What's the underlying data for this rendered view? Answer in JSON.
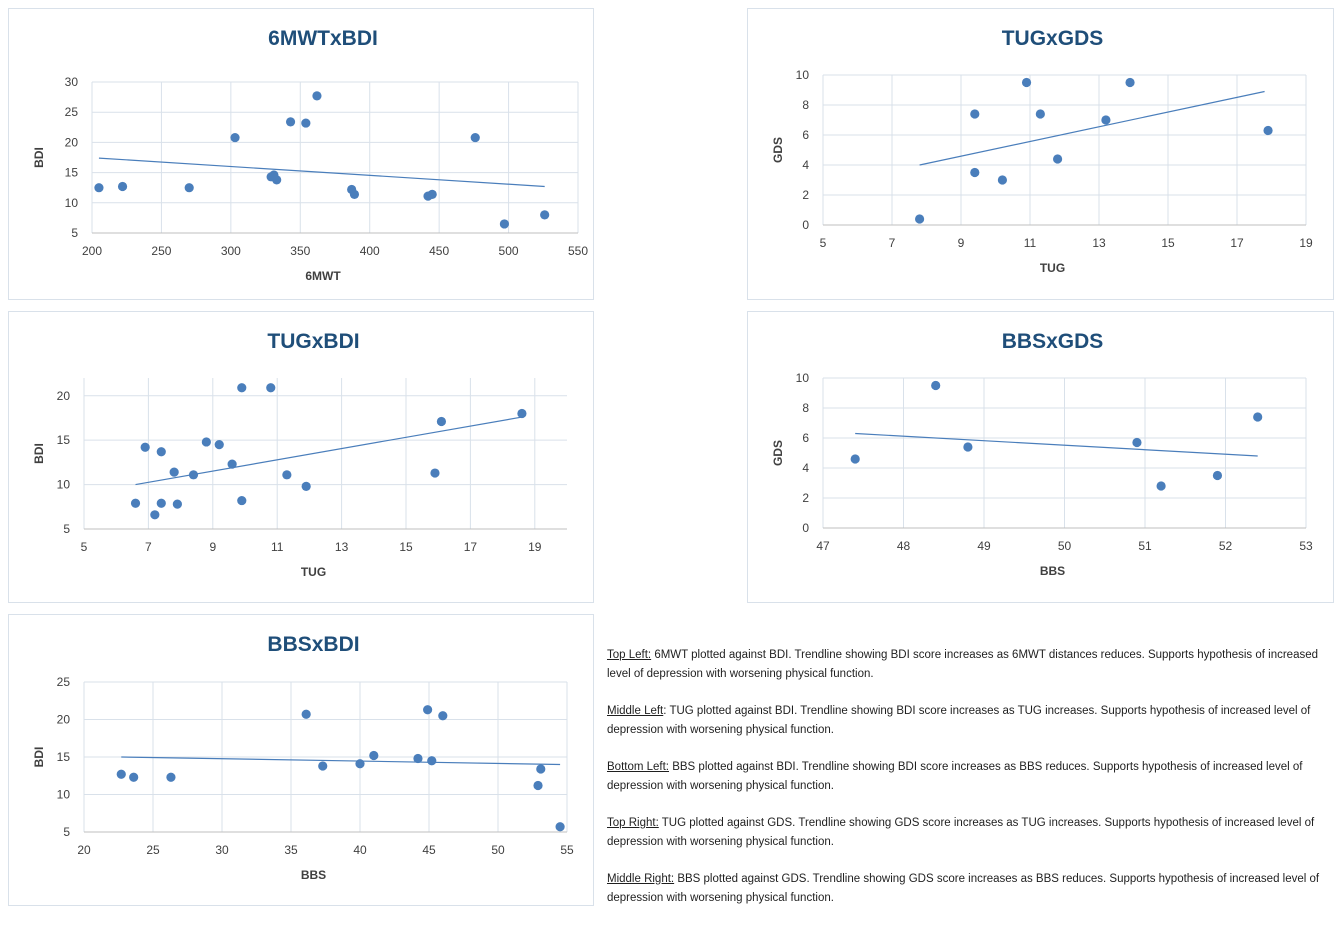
{
  "chart_data": [
    {
      "type": "scatter",
      "title": "6MWTxBDI",
      "xlabel": "6MWT",
      "ylabel": "BDI",
      "xlim": [
        200,
        550
      ],
      "ylim": [
        5,
        30
      ],
      "xticks": [
        200,
        250,
        300,
        350,
        400,
        450,
        500,
        550
      ],
      "yticks": [
        5,
        10,
        15,
        20,
        25,
        30
      ],
      "points": [
        [
          205,
          12.5
        ],
        [
          222,
          12.7
        ],
        [
          270,
          12.5
        ],
        [
          303,
          20.8
        ],
        [
          329,
          14.3
        ],
        [
          331,
          14.6
        ],
        [
          333,
          13.8
        ],
        [
          343,
          23.4
        ],
        [
          354,
          23.2
        ],
        [
          362,
          27.7
        ],
        [
          387,
          12.2
        ],
        [
          389,
          11.4
        ],
        [
          442,
          11.1
        ],
        [
          445,
          11.4
        ],
        [
          476,
          20.8
        ],
        [
          497,
          6.5
        ],
        [
          526,
          8.0
        ]
      ],
      "trendline": [
        [
          205,
          17.4
        ],
        [
          526,
          12.7
        ]
      ],
      "grid": true
    },
    {
      "type": "scatter",
      "title": "TUGxGDS",
      "xlabel": "TUG",
      "ylabel": "GDS",
      "xlim": [
        5,
        19
      ],
      "ylim": [
        0,
        10
      ],
      "xticks": [
        5,
        7,
        9,
        11,
        13,
        15,
        17,
        19
      ],
      "yticks": [
        0,
        2,
        4,
        6,
        8,
        10
      ],
      "points": [
        [
          7.8,
          0.4
        ],
        [
          9.4,
          3.5
        ],
        [
          9.4,
          7.4
        ],
        [
          10.2,
          3.0
        ],
        [
          10.9,
          9.5
        ],
        [
          11.3,
          7.4
        ],
        [
          11.8,
          4.4
        ],
        [
          13.2,
          7.0
        ],
        [
          13.9,
          9.5
        ],
        [
          17.9,
          6.3
        ]
      ],
      "trendline": [
        [
          7.8,
          4.0
        ],
        [
          17.8,
          8.9
        ]
      ],
      "grid": true
    },
    {
      "type": "scatter",
      "title": "TUGxBDI",
      "xlabel": "TUG",
      "ylabel": "BDI",
      "xlim": [
        5,
        20
      ],
      "ylim": [
        5,
        22
      ],
      "xticks": [
        5,
        7,
        9,
        11,
        13,
        15,
        17,
        19
      ],
      "yticks": [
        5,
        10,
        15,
        20
      ],
      "points": [
        [
          6.6,
          7.9
        ],
        [
          6.9,
          14.2
        ],
        [
          7.2,
          6.6
        ],
        [
          7.4,
          7.9
        ],
        [
          7.4,
          13.7
        ],
        [
          7.8,
          11.4
        ],
        [
          7.9,
          7.8
        ],
        [
          8.4,
          11.1
        ],
        [
          8.8,
          14.8
        ],
        [
          9.2,
          14.5
        ],
        [
          9.6,
          12.3
        ],
        [
          9.9,
          8.2
        ],
        [
          9.9,
          20.9
        ],
        [
          10.8,
          20.9
        ],
        [
          11.3,
          11.1
        ],
        [
          11.9,
          9.8
        ],
        [
          15.9,
          11.3
        ],
        [
          16.1,
          17.1
        ],
        [
          18.6,
          18.0
        ]
      ],
      "trendline": [
        [
          6.6,
          10.0
        ],
        [
          18.6,
          17.6
        ]
      ],
      "grid": true
    },
    {
      "type": "scatter",
      "title": "BBSxGDS",
      "xlabel": "BBS",
      "ylabel": "GDS",
      "xlim": [
        47,
        53
      ],
      "ylim": [
        0,
        10
      ],
      "xticks": [
        47,
        48,
        49,
        50,
        51,
        52,
        53
      ],
      "yticks": [
        0,
        2,
        4,
        6,
        8,
        10
      ],
      "points": [
        [
          47.4,
          4.6
        ],
        [
          48.4,
          9.5
        ],
        [
          48.8,
          5.4
        ],
        [
          50.9,
          5.7
        ],
        [
          51.2,
          2.8
        ],
        [
          51.9,
          3.5
        ],
        [
          52.4,
          7.4
        ]
      ],
      "trendline": [
        [
          47.4,
          6.3
        ],
        [
          52.4,
          4.8
        ]
      ],
      "grid": true
    },
    {
      "type": "scatter",
      "title": "BBSxBDI",
      "xlabel": "BBS",
      "ylabel": "BDI",
      "xlim": [
        20,
        55
      ],
      "ylim": [
        5,
        25
      ],
      "xticks": [
        20,
        25,
        30,
        35,
        40,
        45,
        50,
        55
      ],
      "yticks": [
        5,
        10,
        15,
        20,
        25
      ],
      "points": [
        [
          22.7,
          12.7
        ],
        [
          23.6,
          12.3
        ],
        [
          26.3,
          12.3
        ],
        [
          36.1,
          20.7
        ],
        [
          37.3,
          13.8
        ],
        [
          40.0,
          14.1
        ],
        [
          41.0,
          15.2
        ],
        [
          44.2,
          14.8
        ],
        [
          44.9,
          21.3
        ],
        [
          45.2,
          14.5
        ],
        [
          46.0,
          20.5
        ],
        [
          52.9,
          11.2
        ],
        [
          53.1,
          13.4
        ],
        [
          54.5,
          5.7
        ]
      ],
      "trendline": [
        [
          22.7,
          15.0
        ],
        [
          54.5,
          14.0
        ]
      ],
      "grid": true
    }
  ],
  "notes": [
    {
      "head": "Top Left:",
      "text": " 6MWT plotted against BDI. Trendline showing BDI score increases as 6MWT distances reduces. Supports hypothesis of increased level of depression with worsening physical function."
    },
    {
      "head": "Middle Left",
      "text": ": TUG plotted against BDI. Trendline showing BDI score increases as TUG increases. Supports hypothesis of increased level of depression with worsening physical function."
    },
    {
      "head": "Bottom Left:",
      "text": " BBS plotted against BDI. Trendline showing BDI score increases as BBS reduces. Supports hypothesis of increased level of depression with worsening physical function."
    },
    {
      "head": "Top Right:",
      "text": " TUG plotted against GDS. Trendline showing GDS score increases as TUG increases. Supports hypothesis of increased level of depression with worsening physical function."
    },
    {
      "head": "Middle Right:",
      "text": " BBS plotted against GDS. Trendline showing GDS score increases as BBS reduces. Supports hypothesis of increased level of depression with worsening physical function."
    }
  ],
  "colors": {
    "marker": "#4a7ebb",
    "trendline": "#4a7ebb",
    "title": "#1f4e79",
    "axis_text": "#404040",
    "grid": "#d9e1ea"
  }
}
